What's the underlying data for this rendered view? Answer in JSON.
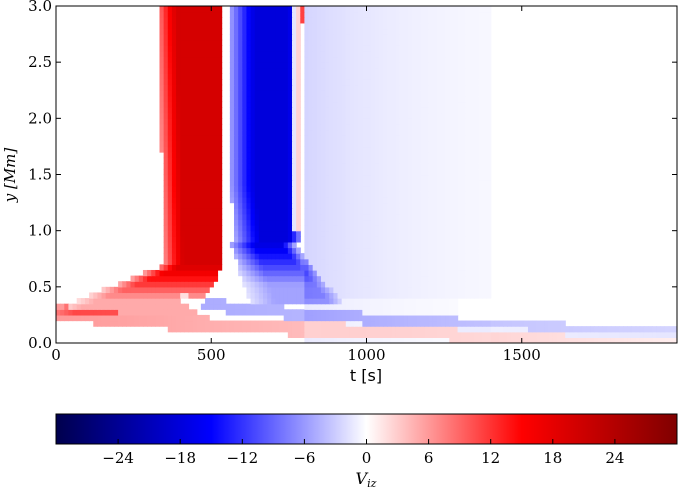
{
  "chart_data": [
    {
      "type": "heatmap",
      "title": "",
      "xlabel": "t [s]",
      "ylabel": "y [Mm]",
      "xlim": [
        0,
        2000
      ],
      "ylim": [
        0.0,
        3.0
      ],
      "xticks": [
        {
          "value": 0,
          "label": "0"
        },
        {
          "value": 500,
          "label": "500"
        },
        {
          "value": 1000,
          "label": "1000"
        },
        {
          "value": 1500,
          "label": "1500"
        }
      ],
      "yticks": [
        {
          "value": 0.0,
          "label": "0.0"
        },
        {
          "value": 0.5,
          "label": "0.5"
        },
        {
          "value": 1.0,
          "label": "1.0"
        },
        {
          "value": 1.5,
          "label": "1.5"
        },
        {
          "value": 2.0,
          "label": "2.0"
        },
        {
          "value": 2.5,
          "label": "2.5"
        },
        {
          "value": 3.0,
          "label": "3.0"
        }
      ],
      "features": [
        {
          "name": "red-front",
          "sign": "positive",
          "t_at_top": 440,
          "t_at_y1": 420,
          "t_at_y05": 300,
          "origin": [
            0,
            0.3
          ],
          "width_s": 230,
          "peak": 20
        },
        {
          "name": "blue-front",
          "sign": "negative",
          "t_at_top": 700,
          "t_at_y1": 680,
          "t_at_y05": 620,
          "origin": [
            0,
            0.3
          ],
          "width_s": 220,
          "peak": -18
        },
        {
          "name": "thin-red-streak",
          "sign": "positive",
          "t_at_top": 780,
          "peak": 14
        },
        {
          "name": "lower-red-branch",
          "sign": "positive",
          "from": [
            0,
            0.3
          ],
          "to": [
            2000,
            0.03
          ],
          "peak": 6
        },
        {
          "name": "lower-blue-branch",
          "sign": "negative",
          "from": [
            400,
            0.4
          ],
          "to": [
            2000,
            0.08
          ],
          "peak": -5
        }
      ]
    },
    {
      "type": "colorbar",
      "label": "V_iz",
      "range": [
        -30,
        30
      ],
      "ticks": [
        {
          "value": -24,
          "label": "−24"
        },
        {
          "value": -18,
          "label": "−18"
        },
        {
          "value": -12,
          "label": "−12"
        },
        {
          "value": -6,
          "label": "−6"
        },
        {
          "value": 0,
          "label": "0"
        },
        {
          "value": 6,
          "label": "6"
        },
        {
          "value": 12,
          "label": "12"
        },
        {
          "value": 18,
          "label": "18"
        },
        {
          "value": 24,
          "label": "24"
        }
      ],
      "colormap": [
        "#00004d",
        "#0000ff",
        "#ffffff",
        "#ff0000",
        "#800000"
      ]
    }
  ]
}
